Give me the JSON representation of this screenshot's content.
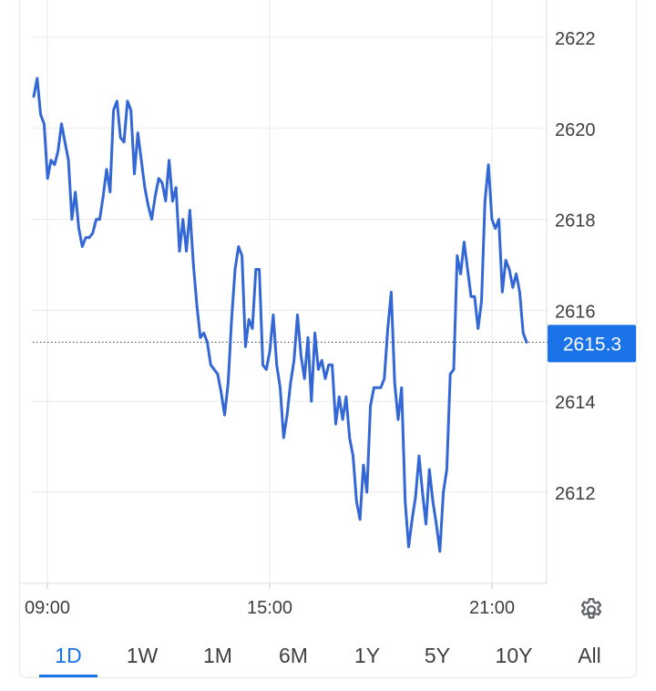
{
  "chart_data": {
    "type": "line",
    "title": "",
    "xlabel": "",
    "ylabel": "",
    "x_ticks": [
      "09:00",
      "15:00",
      "21:00"
    ],
    "y_ticks": [
      2612,
      2614,
      2616,
      2618,
      2620,
      2622
    ],
    "ylim": [
      2610.0,
      2623.0
    ],
    "grid": true,
    "current_value": 2615.3,
    "current_value_label": "2615.3",
    "line_color": "#3367d6",
    "badge_color": "#1a73e8",
    "series": [
      {
        "values": [
          2620.7,
          2621.1,
          2620.3,
          2620.1,
          2618.9,
          2619.3,
          2619.2,
          2619.5,
          2620.1,
          2619.7,
          2619.3,
          2618.0,
          2618.6,
          2617.8,
          2617.4,
          2617.6,
          2617.6,
          2617.7,
          2618.0,
          2618.0,
          2618.5,
          2619.1,
          2618.6,
          2620.4,
          2620.6,
          2619.8,
          2619.7,
          2620.6,
          2620.4,
          2619.0,
          2619.9,
          2619.3,
          2618.7,
          2618.3,
          2618.0,
          2618.5,
          2618.9,
          2618.8,
          2618.4,
          2619.3,
          2618.4,
          2618.7,
          2617.3,
          2618.0,
          2617.3,
          2618.2,
          2617.0,
          2616.1,
          2615.4,
          2615.5,
          2615.3,
          2614.8,
          2614.7,
          2614.6,
          2614.2,
          2613.7,
          2614.4,
          2615.8,
          2616.9,
          2617.4,
          2617.2,
          2615.2,
          2615.8,
          2615.6,
          2616.9,
          2616.9,
          2614.8,
          2614.7,
          2615.1,
          2615.9,
          2614.8,
          2614.3,
          2613.2,
          2613.7,
          2614.4,
          2614.9,
          2615.9,
          2615.0,
          2614.5,
          2615.4,
          2614.0,
          2615.5,
          2614.7,
          2614.9,
          2614.5,
          2614.8,
          2614.8,
          2613.5,
          2614.1,
          2613.6,
          2614.1,
          2613.2,
          2612.8,
          2611.8,
          2611.4,
          2612.6,
          2612.0,
          2613.9,
          2614.3,
          2614.3,
          2614.3,
          2614.5,
          2615.6,
          2616.4,
          2614.4,
          2613.6,
          2614.3,
          2611.8,
          2610.8,
          2611.4,
          2611.9,
          2612.8,
          2612.0,
          2611.3,
          2612.5,
          2611.8,
          2611.3,
          2610.7,
          2612.0,
          2612.5,
          2614.6,
          2614.7,
          2617.2,
          2616.8,
          2617.5,
          2616.9,
          2616.3,
          2616.3,
          2615.6,
          2616.2,
          2618.4,
          2619.2,
          2618.0,
          2617.8,
          2618.0,
          2616.4,
          2617.1,
          2616.9,
          2616.5,
          2616.8,
          2616.4,
          2615.5,
          2615.3
        ]
      }
    ]
  },
  "tabs": [
    {
      "label": "1D",
      "active": true
    },
    {
      "label": "1W",
      "active": false
    },
    {
      "label": "1M",
      "active": false
    },
    {
      "label": "6M",
      "active": false
    },
    {
      "label": "1Y",
      "active": false
    },
    {
      "label": "5Y",
      "active": false
    },
    {
      "label": "10Y",
      "active": false
    },
    {
      "label": "All",
      "active": false
    }
  ],
  "settings_icon": "gear-icon"
}
